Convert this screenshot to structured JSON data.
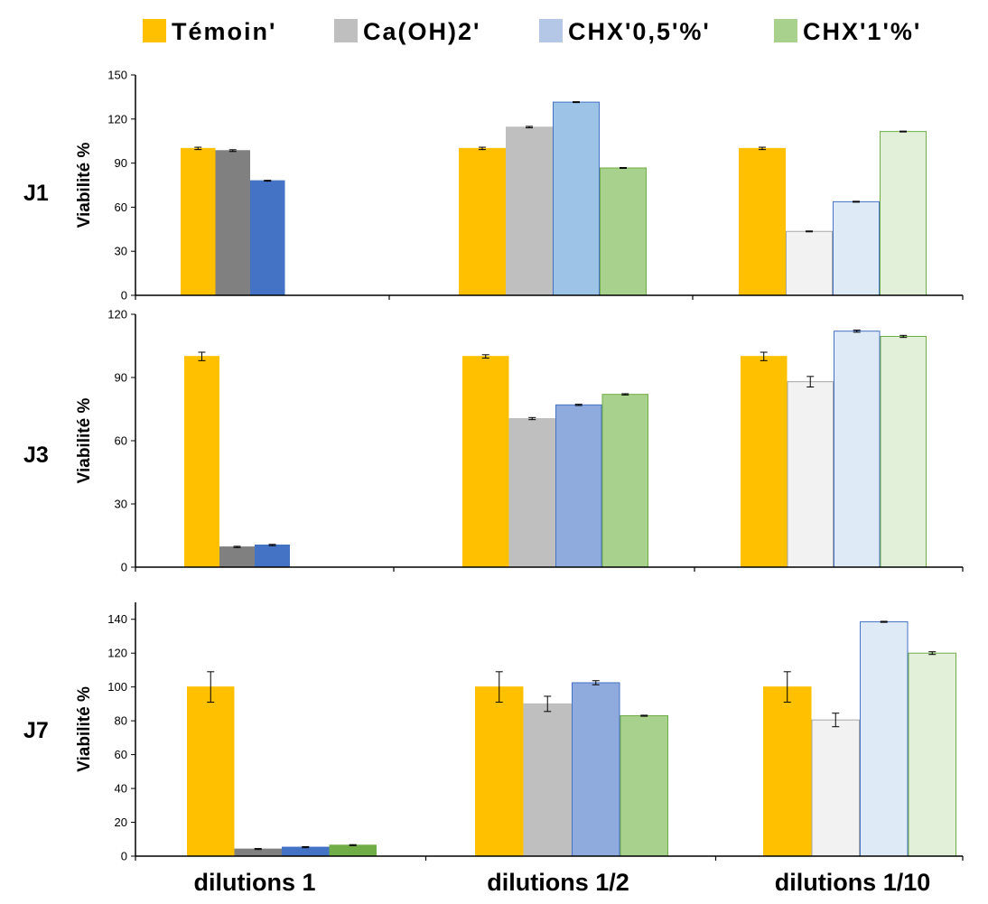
{
  "legend": [
    {
      "label": "Témoin'",
      "color": "#ffc000"
    },
    {
      "label": "Ca(OH)2'",
      "color": "#bfbfbf"
    },
    {
      "label": "CHX'0,5'%'",
      "color": "#b4c7e7"
    },
    {
      "label": "CHX'1'%'",
      "color": "#a9d18e"
    }
  ],
  "categories": [
    "dilutions 1",
    "dilutions 1/2",
    "dilutions 1/10"
  ],
  "chart_data": [
    {
      "type": "bar",
      "panel_label": "J1",
      "ylabel": "Viabilité %",
      "ylim": [
        0,
        150
      ],
      "yticks": [
        0,
        30,
        60,
        90,
        120,
        150
      ],
      "categories": [
        "dilutions 1",
        "dilutions 1/2",
        "dilutions 1/10"
      ],
      "series": [
        {
          "name": "Témoin'",
          "values": [
            100,
            100,
            100
          ],
          "errors": [
            0.8,
            0.8,
            0.8
          ]
        },
        {
          "name": "Ca(OH)2'",
          "values": [
            98.5,
            114.5,
            43.5
          ],
          "errors": [
            0.6,
            0.5,
            0.3
          ]
        },
        {
          "name": "CHX'0,5'%'",
          "values": [
            78,
            131.5,
            63.7
          ],
          "errors": [
            0.3,
            0.3,
            0.3
          ]
        },
        {
          "name": "CHX'1'%'",
          "values": [
            null,
            86.7,
            111.5
          ],
          "errors": [
            null,
            0.3,
            0.3
          ]
        }
      ],
      "colors": [
        {
          "fill": [
            "#ffc000",
            "#ffc000",
            "#ffc000"
          ],
          "stroke": [
            "#ffc000",
            "#ffc000",
            "#ffc000"
          ]
        },
        {
          "fill": [
            "#808080",
            "#bfbfbf",
            "#f2f2f2"
          ],
          "stroke": [
            "#808080",
            "#bfbfbf",
            "#a6a6a6"
          ]
        },
        {
          "fill": [
            "#4472c4",
            "#9dc3e6",
            "#deebf7"
          ],
          "stroke": [
            "#4472c4",
            "#4472c4",
            "#4472c4"
          ]
        },
        {
          "fill": [
            "#70ad47",
            "#a9d18e",
            "#e2f0d9"
          ],
          "stroke": [
            "#70ad47",
            "#70ad47",
            "#70ad47"
          ]
        }
      ]
    },
    {
      "type": "bar",
      "panel_label": "J3",
      "ylabel": "Viabilité %",
      "ylim": [
        0,
        120
      ],
      "yticks": [
        0,
        30,
        60,
        90,
        120
      ],
      "categories": [
        "dilutions 1",
        "dilutions 1/2",
        "dilutions 1/10"
      ],
      "series": [
        {
          "name": "Témoin'",
          "values": [
            100,
            100,
            100
          ],
          "errors": [
            2,
            0.8,
            2
          ]
        },
        {
          "name": "Ca(OH)2'",
          "values": [
            9.6,
            70.5,
            88
          ],
          "errors": [
            0.3,
            0.5,
            2.5
          ]
        },
        {
          "name": "CHX'0,5'%'",
          "values": [
            10.5,
            77,
            112
          ],
          "errors": [
            0.3,
            0.3,
            0.5
          ]
        },
        {
          "name": "CHX'1'%'",
          "values": [
            null,
            82,
            109.5
          ],
          "errors": [
            null,
            0.3,
            0.5
          ]
        }
      ],
      "colors": [
        {
          "fill": [
            "#ffc000",
            "#ffc000",
            "#ffc000"
          ],
          "stroke": [
            "#ffc000",
            "#ffc000",
            "#ffc000"
          ]
        },
        {
          "fill": [
            "#808080",
            "#bfbfbf",
            "#f2f2f2"
          ],
          "stroke": [
            "#808080",
            "#bfbfbf",
            "#a6a6a6"
          ]
        },
        {
          "fill": [
            "#4472c4",
            "#8faadc",
            "#deebf7"
          ],
          "stroke": [
            "#4472c4",
            "#4472c4",
            "#4472c4"
          ]
        },
        {
          "fill": [
            "#70ad47",
            "#a9d18e",
            "#e2f0d9"
          ],
          "stroke": [
            "#70ad47",
            "#70ad47",
            "#70ad47"
          ]
        }
      ]
    },
    {
      "type": "bar",
      "panel_label": "J7",
      "ylabel": "Viabilité %",
      "ylim": [
        0,
        150
      ],
      "yticks": [
        0,
        20,
        40,
        60,
        80,
        100,
        120,
        140
      ],
      "categories": [
        "dilutions 1",
        "dilutions 1/2",
        "dilutions 1/10"
      ],
      "series": [
        {
          "name": "Témoin'",
          "values": [
            100,
            100,
            100
          ],
          "errors": [
            9,
            9,
            9
          ]
        },
        {
          "name": "Ca(OH)2'",
          "values": [
            4.2,
            90,
            80.5
          ],
          "errors": [
            0.3,
            4.5,
            4
          ]
        },
        {
          "name": "CHX'0,5'%'",
          "values": [
            5.3,
            102.5,
            138.5
          ],
          "errors": [
            0.3,
            1.2,
            0.3
          ]
        },
        {
          "name": "CHX'1'%'",
          "values": [
            6.5,
            83,
            120
          ],
          "errors": [
            0.3,
            0.3,
            0.8
          ]
        }
      ],
      "colors": [
        {
          "fill": [
            "#ffc000",
            "#ffc000",
            "#ffc000"
          ],
          "stroke": [
            "#ffc000",
            "#ffc000",
            "#ffc000"
          ]
        },
        {
          "fill": [
            "#808080",
            "#bfbfbf",
            "#f2f2f2"
          ],
          "stroke": [
            "#808080",
            "#bfbfbf",
            "#a6a6a6"
          ]
        },
        {
          "fill": [
            "#4472c4",
            "#8faadc",
            "#deebf7"
          ],
          "stroke": [
            "#4472c4",
            "#4472c4",
            "#4472c4"
          ]
        },
        {
          "fill": [
            "#70ad47",
            "#a9d18e",
            "#e2f0d9"
          ],
          "stroke": [
            "#70ad47",
            "#70ad47",
            "#70ad47"
          ]
        }
      ]
    }
  ]
}
